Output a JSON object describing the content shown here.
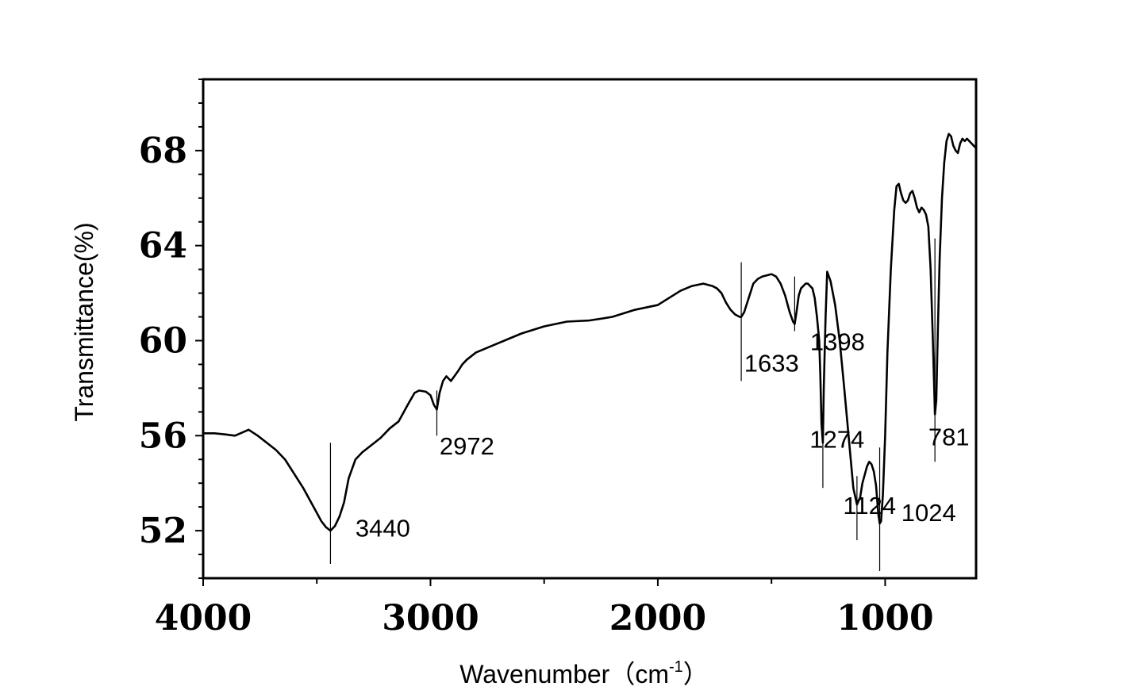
{
  "chart_data": {
    "type": "line",
    "title": "",
    "xlabel": "Wavenumber（cm",
    "xlabel_sup": "-1",
    "xlabel_close": "）",
    "ylabel": "Transmittance(%)",
    "xlim": [
      4000,
      600
    ],
    "ylim": [
      50.0,
      71.0
    ],
    "x_reversed": true,
    "grid": false,
    "x_ticks": [
      4000,
      3000,
      2000,
      1000
    ],
    "x_tick_labels": [
      "4000",
      "3000",
      "2000",
      "1000"
    ],
    "x_minor_ticks": [
      3500,
      2500,
      1500
    ],
    "y_ticks": [
      52,
      56,
      60,
      64,
      68
    ],
    "y_tick_labels": [
      "52",
      "56",
      "60",
      "64",
      "68"
    ],
    "y_minor_step": 1,
    "series": [
      {
        "x": [
          4000,
          3950,
          3900,
          3860,
          3800,
          3760,
          3720,
          3680,
          3640,
          3600,
          3560,
          3520,
          3480,
          3460,
          3440,
          3420,
          3400,
          3380,
          3360,
          3330,
          3300,
          3260,
          3220,
          3200,
          3180,
          3140,
          3100,
          3070,
          3050,
          3020,
          3000,
          2985,
          2972,
          2960,
          2945,
          2930,
          2910,
          2880,
          2860,
          2840,
          2800,
          2700,
          2600,
          2500,
          2400,
          2300,
          2200,
          2100,
          2000,
          1950,
          1900,
          1850,
          1800,
          1760,
          1740,
          1720,
          1700,
          1680,
          1660,
          1640,
          1633,
          1620,
          1600,
          1580,
          1560,
          1540,
          1520,
          1500,
          1480,
          1460,
          1440,
          1420,
          1405,
          1398,
          1390,
          1380,
          1370,
          1350,
          1340,
          1320,
          1310,
          1300,
          1290,
          1285,
          1280,
          1274,
          1270,
          1262,
          1255,
          1240,
          1220,
          1200,
          1180,
          1160,
          1140,
          1124,
          1110,
          1100,
          1080,
          1070,
          1060,
          1050,
          1040,
          1030,
          1024,
          1018,
          1010,
          1000,
          990,
          975,
          960,
          950,
          940,
          930,
          920,
          910,
          900,
          890,
          880,
          870,
          860,
          850,
          840,
          830,
          820,
          810,
          800,
          790,
          781,
          775,
          768,
          760,
          750,
          740,
          730,
          720,
          710,
          700,
          690,
          680,
          670,
          660,
          650,
          640,
          630,
          620,
          610,
          600
        ],
        "y": [
          56.1,
          56.1,
          56.05,
          56.0,
          56.25,
          56.0,
          55.7,
          55.4,
          55.0,
          54.4,
          53.8,
          53.1,
          52.4,
          52.15,
          52.0,
          52.2,
          52.6,
          53.2,
          54.2,
          55.0,
          55.3,
          55.6,
          55.9,
          56.1,
          56.3,
          56.6,
          57.3,
          57.8,
          57.9,
          57.85,
          57.7,
          57.3,
          57.1,
          57.8,
          58.3,
          58.5,
          58.3,
          58.7,
          59.0,
          59.2,
          59.5,
          59.9,
          60.3,
          60.6,
          60.8,
          60.85,
          61.0,
          61.3,
          61.5,
          61.8,
          62.1,
          62.3,
          62.4,
          62.3,
          62.2,
          62.0,
          61.6,
          61.3,
          61.1,
          61.0,
          61.0,
          61.2,
          61.8,
          62.4,
          62.6,
          62.7,
          62.75,
          62.8,
          62.7,
          62.4,
          61.9,
          61.2,
          60.8,
          60.7,
          61.2,
          61.9,
          62.2,
          62.4,
          62.4,
          62.2,
          61.8,
          61.0,
          60.0,
          58.5,
          56.5,
          55.7,
          58.0,
          61.0,
          62.9,
          62.5,
          61.5,
          60.0,
          58.0,
          55.9,
          53.8,
          53.1,
          53.4,
          54.0,
          54.7,
          54.9,
          54.8,
          54.5,
          53.9,
          52.7,
          52.3,
          52.4,
          53.5,
          56.0,
          59.5,
          63.0,
          65.5,
          66.5,
          66.6,
          66.2,
          65.9,
          65.8,
          65.9,
          66.2,
          66.3,
          66.0,
          65.6,
          65.4,
          65.6,
          65.5,
          65.3,
          64.8,
          63.0,
          60.0,
          56.9,
          57.5,
          60.5,
          63.5,
          66.0,
          67.5,
          68.4,
          68.7,
          68.6,
          68.2,
          68.0,
          67.9,
          68.3,
          68.5,
          68.4,
          68.5,
          68.4,
          68.3,
          68.2,
          68.1
        ]
      }
    ],
    "annotations": [
      {
        "text": "3440",
        "x": 3440,
        "line_top": 55.7,
        "line_bottom": 50.6,
        "label_x": 3330,
        "label_y": 51.75
      },
      {
        "text": "2972",
        "x": 2972,
        "line_top": 57.9,
        "line_bottom": 56.0,
        "label_x": 2960,
        "label_y": 55.2
      },
      {
        "text": "1633",
        "x": 1633,
        "line_top": 63.3,
        "line_bottom": 58.3,
        "label_x": 1620,
        "label_y": 58.7
      },
      {
        "text": "1398",
        "x": 1398,
        "line_top": 62.7,
        "line_bottom": 60.4,
        "label_x": 1330,
        "label_y": 59.6
      },
      {
        "text": "1274",
        "x": 1274,
        "line_top": 56.7,
        "line_bottom": 53.8,
        "label_x": 1332,
        "label_y": 55.5
      },
      {
        "text": "1124",
        "x": 1124,
        "line_top": 54.3,
        "line_bottom": 51.6,
        "label_x": 1185,
        "label_y": 52.7
      },
      {
        "text": "1024",
        "x": 1024,
        "line_top": 55.5,
        "line_bottom": 50.3,
        "label_x": 929,
        "label_y": 52.4
      },
      {
        "text": "781",
        "x": 781,
        "line_top": 64.3,
        "line_bottom": 54.9,
        "label_x": 810,
        "label_y": 55.6
      }
    ],
    "style": {
      "line_color": "#000000",
      "axis_color": "#000000",
      "background": "#ffffff"
    }
  }
}
